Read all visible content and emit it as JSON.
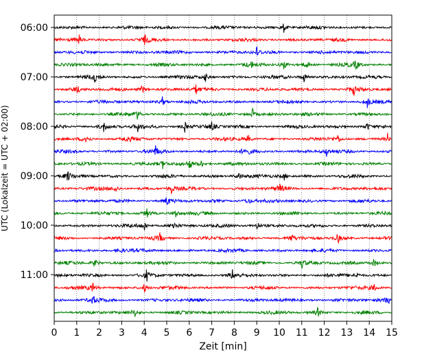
{
  "chart_data": {
    "type": "line",
    "title": "",
    "xlabel": "Zeit  [min]",
    "ylabel": "UTC (Lokalzeit = UTC + 02:00)",
    "xlim": [
      0,
      15
    ],
    "x_ticks": [
      "0",
      "1",
      "2",
      "3",
      "4",
      "5",
      "6",
      "7",
      "8",
      "9",
      "10",
      "11",
      "12",
      "13",
      "14",
      "15"
    ],
    "y_tick_labels": [
      "06:00",
      "07:00",
      "08:00",
      "09:00",
      "10:00",
      "11:00"
    ],
    "grid": "vertical dotted lines at every minute",
    "trace_colors": [
      "#000000",
      "#ff0000",
      "#0000ff",
      "#008000"
    ],
    "traces": [
      {
        "start": "05:45",
        "events": [
          10.2
        ]
      },
      {
        "start": "05:45",
        "events": [
          1.1,
          4.0
        ]
      },
      {
        "start": "06:00",
        "events": [
          9.0
        ]
      },
      {
        "start": "06:15",
        "events": [
          8.7,
          10.2,
          11.2,
          13.4
        ]
      },
      {
        "start": "06:30",
        "events": [
          1.8,
          6.7,
          11.1
        ]
      },
      {
        "start": "06:45",
        "events": [
          1.0,
          3.9,
          6.3,
          13.3
        ]
      },
      {
        "start": "07:00",
        "events": [
          4.8,
          13.9
        ]
      },
      {
        "start": "07:15",
        "events": [
          3.7,
          8.8
        ]
      },
      {
        "start": "07:30",
        "events": [
          2.2,
          3.7,
          5.8,
          7.0,
          13.9
        ]
      },
      {
        "start": "07:45",
        "events": [
          1.4,
          3.2,
          8.6,
          12.6,
          14.8
        ]
      },
      {
        "start": "08:00",
        "events": [
          4.5,
          8.5,
          12.1
        ]
      },
      {
        "start": "08:15",
        "events": [
          4.8,
          6.0,
          6.5
        ]
      },
      {
        "start": "08:30",
        "events": [
          0.6,
          8.2,
          10.2
        ]
      },
      {
        "start": "08:45",
        "events": [
          2.7,
          5.2,
          10.0
        ]
      },
      {
        "start": "09:00",
        "events": [
          5.0,
          8.6
        ]
      },
      {
        "start": "09:15",
        "events": [
          4.1,
          5.4
        ]
      },
      {
        "start": "09:30",
        "events": [
          4.0,
          5.3,
          9.0
        ]
      },
      {
        "start": "09:45",
        "events": [
          4.7,
          10.5,
          12.6
        ]
      },
      {
        "start": "10:00",
        "events": [
          2.9
        ]
      },
      {
        "start": "10:15",
        "events": [
          1.8,
          11.0,
          14.2
        ]
      },
      {
        "start": "10:30",
        "events": [
          4.1,
          7.9,
          13.4
        ]
      },
      {
        "start": "10:45",
        "events": [
          1.7,
          4.0,
          14.2
        ]
      },
      {
        "start": "11:00",
        "events": [
          1.7,
          14.8
        ]
      },
      {
        "start": "11:15",
        "events": [
          3.6,
          11.7
        ]
      }
    ]
  }
}
